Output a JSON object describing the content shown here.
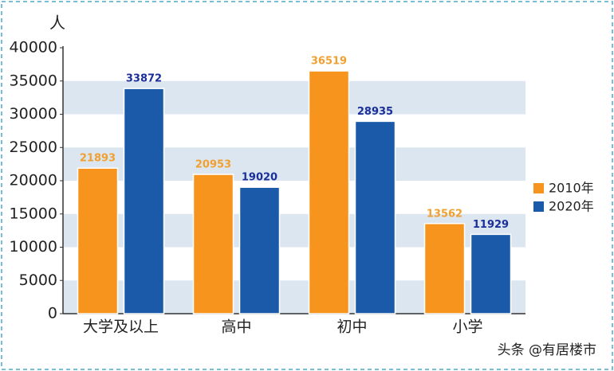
{
  "chart_data": {
    "type": "bar",
    "y_label": "人",
    "categories": [
      "大学及以上",
      "高中",
      "初中",
      "小学"
    ],
    "series": [
      {
        "name": "2010年",
        "color": "#f7941d",
        "label_color": "#f0a030",
        "values": [
          21893,
          20953,
          36519,
          13562
        ]
      },
      {
        "name": "2020年",
        "color": "#1a5aa8",
        "label_color": "#1a2f9a",
        "values": [
          33872,
          19020,
          28935,
          11929
        ]
      }
    ],
    "ylim": [
      0,
      40000
    ],
    "yticks": [
      0,
      5000,
      10000,
      15000,
      20000,
      25000,
      30000,
      35000,
      40000
    ],
    "grid": "bands",
    "band_color": "#dce6f0",
    "legend": "right"
  },
  "watermark": "头条 @有居楼市"
}
